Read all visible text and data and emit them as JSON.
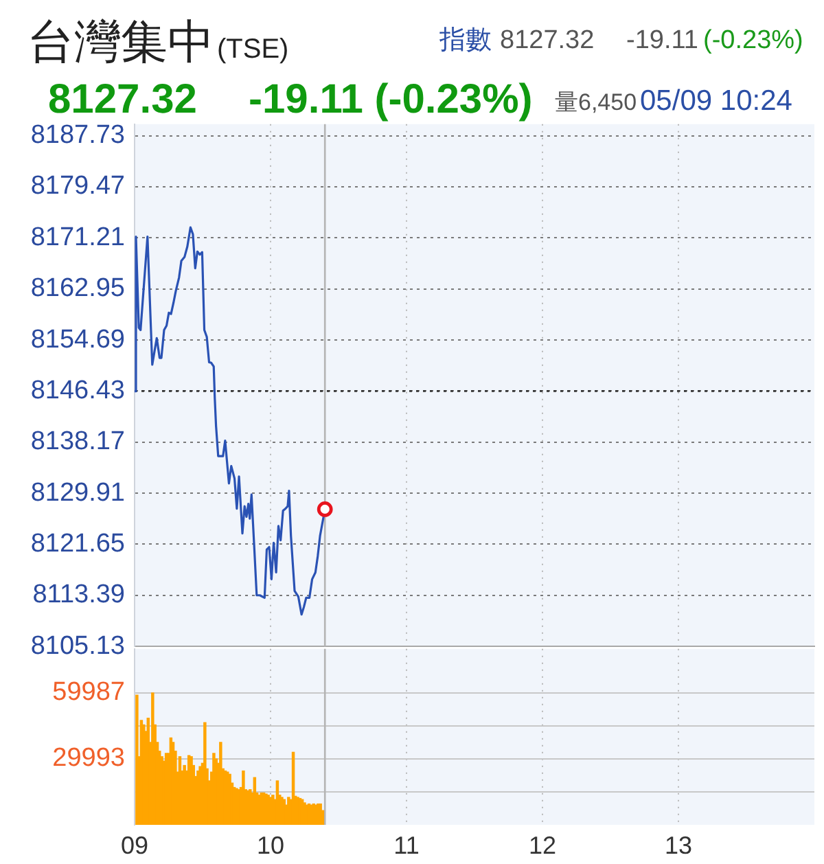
{
  "chart_data": [
    {
      "type": "line",
      "title": "台灣集中",
      "subtitle": "(TSE)",
      "annotations": [
        "指數",
        "8127.32",
        "-19.11",
        "(-0.23%)",
        "8127.32",
        "-19.11 (-0.23%)",
        "量6,450",
        "05/09 10:24"
      ],
      "x": [
        9,
        9.01,
        9.031,
        9.044,
        9.095,
        9.13,
        9.163,
        9.184,
        9.197,
        9.217,
        9.235,
        9.252,
        9.268,
        9.286,
        9.303,
        9.327,
        9.344,
        9.367,
        9.388,
        9.411,
        9.429,
        9.446,
        9.462,
        9.48,
        9.497,
        9.513,
        9.531,
        9.548,
        9.564,
        9.582,
        9.59,
        9.599,
        9.615,
        9.65,
        9.666,
        9.694,
        9.711,
        9.735,
        9.752,
        9.768,
        9.793,
        9.809,
        9.823,
        9.837,
        9.847,
        9.86,
        9.881,
        9.898,
        9.921,
        9.956,
        9.972,
        9.99,
        10.007,
        10.023,
        10.041,
        10.058,
        10.074,
        10.092,
        10.109,
        10.126,
        10.136,
        10.15,
        10.177,
        10.204,
        10.228,
        10.245,
        10.262,
        10.286,
        10.306,
        10.33,
        10.347,
        10.364,
        10.4
      ],
      "series": [
        {
          "color": "#2a52b4",
          "values": [
            8146.4,
            8171.4,
            8156.7,
            8156.3,
            8171.4,
            8150.7,
            8155,
            8151.8,
            8151.8,
            8156.3,
            8157,
            8159.1,
            8158.9,
            8160.7,
            8162.6,
            8164.8,
            8167.5,
            8168.1,
            8169.8,
            8172.9,
            8171.8,
            8166.3,
            8169,
            8168.5,
            8168.9,
            8156.3,
            8155.2,
            8151.1,
            8151,
            8150.4,
            8145.2,
            8140.8,
            8135.9,
            8135.9,
            8138.4,
            8131.5,
            8134.3,
            8132.3,
            8127.4,
            8132.6,
            8123.4,
            8127.8,
            8126.1,
            8128.2,
            8125.8,
            8129.7,
            8120.8,
            8113.4,
            8113.4,
            8113,
            8120.8,
            8121.2,
            8116,
            8121.9,
            8117.1,
            8124.6,
            8122.3,
            8127.1,
            8127.4,
            8127.8,
            8130.3,
            8123,
            8114.1,
            8113.2,
            8110.3,
            8111.5,
            8113,
            8113,
            8116,
            8117.1,
            8119.7,
            8123,
            8127.32
          ]
        },
        {
          "type": "scatter",
          "x": [
            10.4
          ],
          "values": [
            8127.32
          ],
          "color": "#e8141e",
          "marker": "circle"
        }
      ],
      "xlim": [
        9,
        14
      ],
      "xticks": [
        10,
        11,
        12,
        13
      ],
      "ylim": [
        8105.13,
        8189.6
      ],
      "yticks": [
        8105.13,
        8113.39,
        8121.65,
        8129.91,
        8138.17,
        8146.43,
        8154.69,
        8162.95,
        8171.21,
        8179.47,
        8187.73
      ],
      "grid": true,
      "tick_labels": "y",
      "ref_lines": [
        {
          "axis": "y",
          "value": 8146.43,
          "color": "#333333",
          "line_style": "dotted"
        },
        {
          "axis": "x",
          "value": 10.4,
          "color": "#b4b4b4",
          "line_style": "solid"
        }
      ]
    },
    {
      "type": "bar",
      "x": [
        9.017,
        9.033,
        9.05,
        9.067,
        9.083,
        9.1,
        9.117,
        9.133,
        9.15,
        9.167,
        9.183,
        9.2,
        9.217,
        9.233,
        9.25,
        9.267,
        9.283,
        9.3,
        9.317,
        9.333,
        9.35,
        9.367,
        9.383,
        9.4,
        9.417,
        9.433,
        9.45,
        9.467,
        9.483,
        9.5,
        9.517,
        9.533,
        9.55,
        9.567,
        9.583,
        9.6,
        9.617,
        9.633,
        9.65,
        9.667,
        9.683,
        9.7,
        9.717,
        9.733,
        9.75,
        9.767,
        9.783,
        9.8,
        9.817,
        9.833,
        9.85,
        9.867,
        9.883,
        9.9,
        9.917,
        9.933,
        9.95,
        9.967,
        9.983,
        10,
        10.017,
        10.033,
        10.05,
        10.067,
        10.083,
        10.1,
        10.117,
        10.133,
        10.15,
        10.167,
        10.183,
        10.2,
        10.217,
        10.233,
        10.25,
        10.267,
        10.283,
        10.3,
        10.317,
        10.333,
        10.35,
        10.367,
        10.383
      ],
      "values": [
        59000,
        31000,
        47500,
        45500,
        42500,
        48500,
        37500,
        59987,
        45500,
        37500,
        33500,
        31000,
        29000,
        32500,
        32500,
        39500,
        37500,
        33500,
        24000,
        31000,
        24500,
        27000,
        24500,
        31500,
        31000,
        27000,
        22000,
        24500,
        26500,
        28000,
        46500,
        25500,
        20000,
        24000,
        32500,
        30000,
        28000,
        37500,
        25500,
        24500,
        24000,
        23000,
        19000,
        17000,
        16500,
        16000,
        17000,
        24500,
        16000,
        15500,
        16000,
        14500,
        21500,
        14500,
        13500,
        14500,
        14500,
        14000,
        13500,
        12500,
        13500,
        11500,
        20000,
        13500,
        12500,
        11500,
        9000,
        12500,
        11500,
        33000,
        13000,
        12500,
        12000,
        11500,
        10000,
        9000,
        9500,
        9000,
        9500,
        9000,
        9500,
        9500,
        6500
      ],
      "color": "#ffa500",
      "xlim": [
        9,
        14
      ],
      "xticks": [
        {
          "value": 9,
          "label": "09"
        },
        10,
        11,
        12,
        13
      ],
      "ylim": [
        0,
        80000
      ],
      "yticks": [
        {
          "value": 14997,
          "label": null
        },
        29993,
        {
          "value": 44990,
          "label": null
        },
        59987
      ],
      "grid": true,
      "ref_lines": [
        {
          "axis": "x",
          "value": 10.4,
          "color": "#b4b4b4",
          "line_style": "solid"
        }
      ]
    }
  ]
}
